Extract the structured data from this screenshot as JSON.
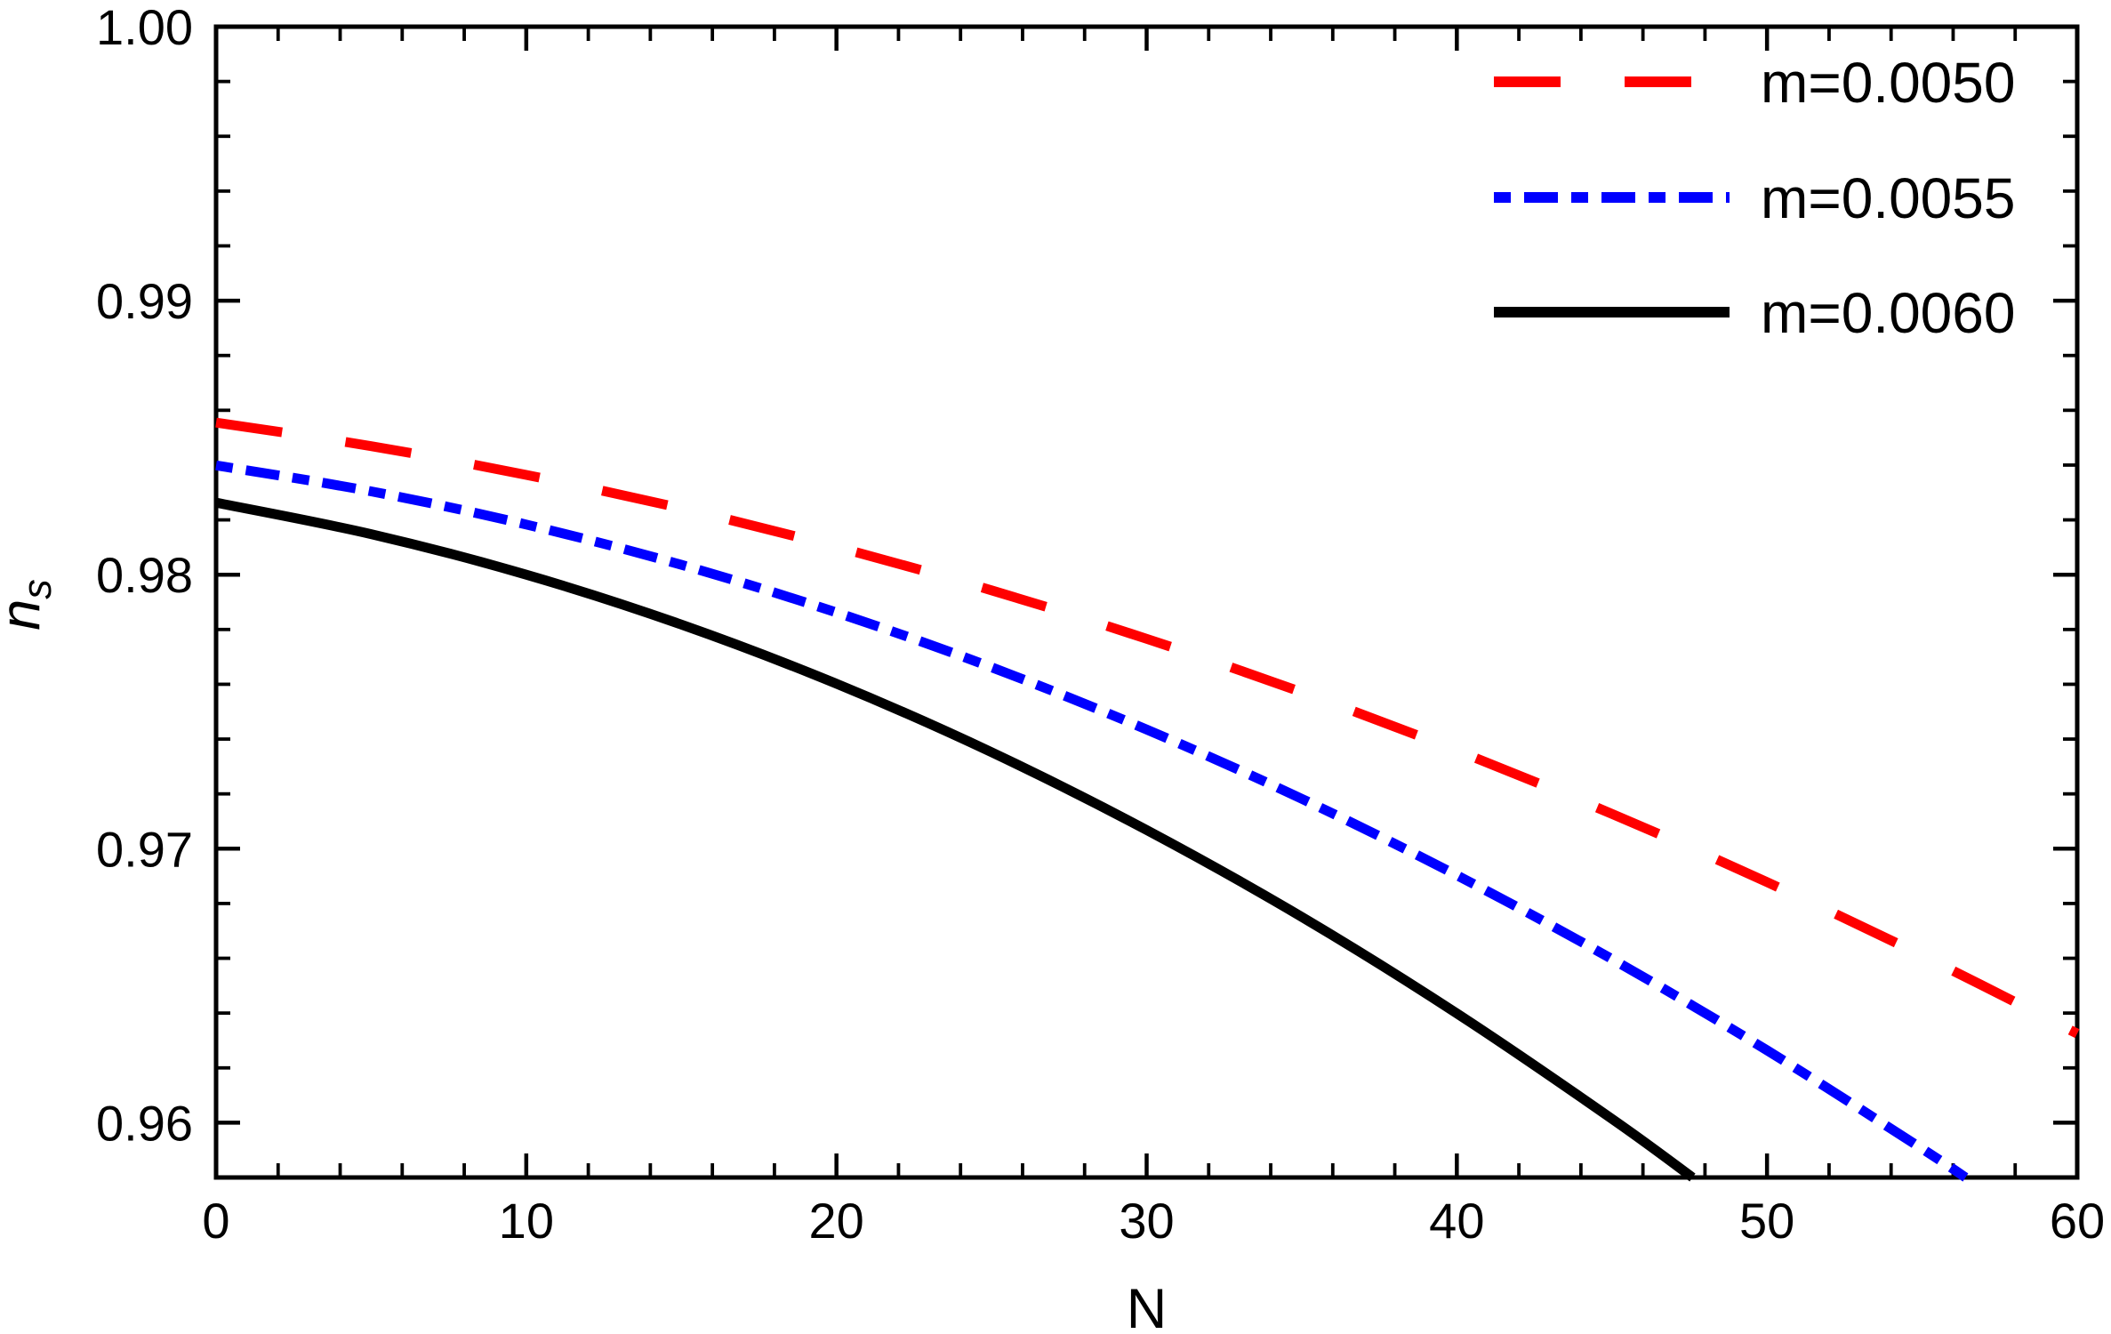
{
  "chart_data": {
    "type": "line",
    "title": "",
    "xlabel": "N",
    "ylabel": "n_s",
    "ylabel_base": "n",
    "ylabel_subscript": "s",
    "xlim": [
      0,
      60
    ],
    "ylim": [
      0.958,
      1.0
    ],
    "grid": false,
    "frame": true,
    "background_color": "#ffffff",
    "frame_color": "#000000",
    "x_major_ticks": [
      0,
      10,
      20,
      30,
      40,
      50,
      60
    ],
    "x_tick_labels": [
      "0",
      "10",
      "20",
      "30",
      "40",
      "50",
      "60"
    ],
    "x_minor_tick_step": 2,
    "y_major_ticks": [
      0.96,
      0.97,
      0.98,
      0.99,
      1.0
    ],
    "y_tick_labels": [
      "0.96",
      "0.97",
      "0.98",
      "0.99",
      "1.00"
    ],
    "y_minor_tick_step": 0.002,
    "legend_position": "top-right-inside",
    "series": [
      {
        "name": "m=0.0050",
        "color": "#ff0000",
        "style": "dashed",
        "line_width": 11,
        "points": [
          [
            0,
            0.98555
          ],
          [
            5,
            0.98469
          ],
          [
            10,
            0.98364
          ],
          [
            15,
            0.98242
          ],
          [
            20,
            0.98101
          ],
          [
            25,
            0.97943
          ],
          [
            30,
            0.97766
          ],
          [
            35,
            0.97571
          ],
          [
            40,
            0.97358
          ],
          [
            45,
            0.97127
          ],
          [
            50,
            0.96878
          ],
          [
            55,
            0.9661
          ],
          [
            60,
            0.96325
          ]
        ]
      },
      {
        "name": "m=0.0055",
        "color": "#0000ff",
        "style": "dash-dot",
        "line_width": 11,
        "points": [
          [
            0,
            0.98399
          ],
          [
            5,
            0.98304
          ],
          [
            10,
            0.98183
          ],
          [
            15,
            0.98036
          ],
          [
            20,
            0.97862
          ],
          [
            25,
            0.97662
          ],
          [
            30,
            0.97435
          ],
          [
            35,
            0.97182
          ],
          [
            40,
            0.96903
          ],
          [
            45,
            0.96597
          ],
          [
            50,
            0.96264
          ],
          [
            55,
            0.95905
          ],
          [
            56.4,
            0.958
          ]
        ]
      },
      {
        "name": "m=0.0060",
        "color": "#000000",
        "style": "solid",
        "line_width": 11,
        "points": [
          [
            0,
            0.98263
          ],
          [
            5,
            0.98148
          ],
          [
            10,
            0.98
          ],
          [
            15,
            0.97818
          ],
          [
            20,
            0.97602
          ],
          [
            25,
            0.97352
          ],
          [
            30,
            0.97068
          ],
          [
            35,
            0.96751
          ],
          [
            40,
            0.96399
          ],
          [
            45,
            0.96014
          ],
          [
            47.6,
            0.958
          ]
        ]
      }
    ],
    "legend": [
      {
        "label": "m=0.0050",
        "color": "#ff0000",
        "style": "dashed"
      },
      {
        "label": "m=0.0055",
        "color": "#0000ff",
        "style": "dash-dot"
      },
      {
        "label": "m=0.0060",
        "color": "#000000",
        "style": "solid"
      }
    ]
  }
}
